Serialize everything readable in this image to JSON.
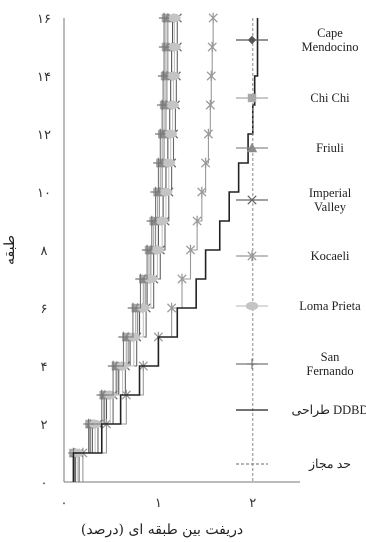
{
  "chart_data": {
    "type": "line",
    "title": "",
    "xlabel": "دریفت بین طبقه ای (درصد)",
    "ylabel": "طبقه",
    "xlim": [
      0,
      2.5
    ],
    "ylim": [
      0,
      16
    ],
    "x_ticks": [
      {
        "value": 0,
        "label": "۰"
      },
      {
        "value": 1,
        "label": "۱"
      },
      {
        "value": 2,
        "label": "۲"
      }
    ],
    "y_ticks": [
      {
        "value": 0,
        "label": "۰"
      },
      {
        "value": 2,
        "label": "۲"
      },
      {
        "value": 4,
        "label": "۴"
      },
      {
        "value": 6,
        "label": "۶"
      },
      {
        "value": 8,
        "label": "۸"
      },
      {
        "value": 10,
        "label": "۱۰"
      },
      {
        "value": 12,
        "label": "۱۲"
      },
      {
        "value": 14,
        "label": "۱۴"
      },
      {
        "value": 16,
        "label": "۱۶"
      }
    ],
    "grid": false,
    "legend_position": "right",
    "stories": [
      1,
      2,
      3,
      4,
      5,
      6,
      7,
      8,
      9,
      10,
      11,
      12,
      13,
      14,
      15,
      16
    ],
    "series": [
      {
        "name": "Cape Mendocino",
        "marker": "diamond",
        "color": "#555555",
        "values": [
          0.12,
          0.3,
          0.45,
          0.58,
          0.7,
          0.8,
          0.88,
          0.95,
          1.0,
          1.05,
          1.08,
          1.1,
          1.12,
          1.13,
          1.14,
          1.15
        ]
      },
      {
        "name": "Chi Chi",
        "marker": "square",
        "color": "#a8a8a8",
        "values": [
          0.1,
          0.27,
          0.42,
          0.55,
          0.66,
          0.76,
          0.84,
          0.9,
          0.95,
          0.99,
          1.02,
          1.04,
          1.06,
          1.07,
          1.08,
          1.08
        ]
      },
      {
        "name": "Friuli",
        "marker": "triangle",
        "color": "#8a8a8a",
        "values": [
          0.11,
          0.28,
          0.43,
          0.56,
          0.68,
          0.78,
          0.86,
          0.92,
          0.97,
          1.01,
          1.04,
          1.06,
          1.08,
          1.09,
          1.1,
          1.1
        ]
      },
      {
        "name": "Imperial Valley",
        "marker": "x",
        "color": "#666666",
        "values": [
          0.16,
          0.36,
          0.52,
          0.65,
          0.77,
          0.87,
          0.95,
          1.02,
          1.07,
          1.11,
          1.14,
          1.16,
          1.18,
          1.19,
          1.2,
          1.2
        ]
      },
      {
        "name": "Kocaeli",
        "marker": "asterisk",
        "color": "#9a9a9a",
        "values": [
          0.2,
          0.45,
          0.66,
          0.84,
          1.0,
          1.14,
          1.25,
          1.34,
          1.41,
          1.46,
          1.5,
          1.53,
          1.55,
          1.56,
          1.57,
          1.58
        ]
      },
      {
        "name": "Loma Prieta",
        "marker": "circle",
        "color": "#c4c4c4",
        "values": [
          0.14,
          0.33,
          0.49,
          0.62,
          0.74,
          0.84,
          0.92,
          0.99,
          1.04,
          1.08,
          1.11,
          1.13,
          1.15,
          1.16,
          1.17,
          1.17
        ]
      },
      {
        "name": "San Fernando",
        "marker": "plus",
        "color": "#777777",
        "values": [
          0.1,
          0.26,
          0.4,
          0.52,
          0.63,
          0.73,
          0.81,
          0.88,
          0.93,
          0.97,
          1.0,
          1.02,
          1.04,
          1.05,
          1.06,
          1.06
        ]
      },
      {
        "name": "طراحی DDBD",
        "marker": "none",
        "color": "#222222",
        "style": "step",
        "values": [
          0.1,
          0.4,
          0.6,
          0.8,
          1.0,
          1.2,
          1.4,
          1.5,
          1.65,
          1.75,
          1.85,
          1.95,
          2.0,
          2.02,
          2.05,
          2.05
        ]
      },
      {
        "name": "حد مجاز",
        "marker": "none",
        "color": "#888888",
        "style": "dashed-vertical",
        "x": 2.0
      }
    ],
    "legend": [
      {
        "text": "Cape\nMendocino",
        "marker": "diamond",
        "color": "#555555"
      },
      {
        "text": "Chi Chi",
        "marker": "square",
        "color": "#a8a8a8"
      },
      {
        "text": "Friuli",
        "marker": "triangle",
        "color": "#8a8a8a"
      },
      {
        "text": "Imperial\nValley",
        "marker": "x",
        "color": "#666666"
      },
      {
        "text": "Kocaeli",
        "marker": "asterisk",
        "color": "#9a9a9a"
      },
      {
        "text": "Loma Prieta",
        "marker": "circle",
        "color": "#c4c4c4"
      },
      {
        "text": "San\nFernando",
        "marker": "plus",
        "color": "#777777"
      },
      {
        "text": "طراحی DDBD",
        "marker": "none",
        "color": "#222222"
      },
      {
        "text": "حد مجاز",
        "marker": "none",
        "color": "#888888",
        "dashed": true
      }
    ]
  }
}
